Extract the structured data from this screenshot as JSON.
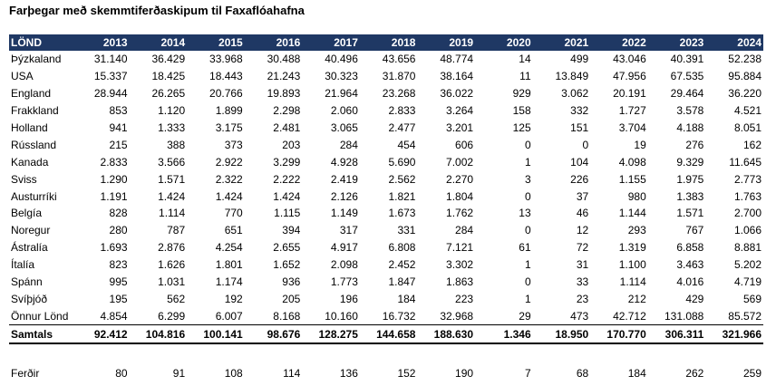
{
  "title": "Farþegar með skemmtiferðaskipum til Faxaflóahafna",
  "table": {
    "columns": [
      "LÖND",
      "2013",
      "2014",
      "2015",
      "2016",
      "2017",
      "2018",
      "2019",
      "2020",
      "2021",
      "2022",
      "2023",
      "2024"
    ],
    "rows": [
      [
        "Þýzkaland",
        "31.140",
        "36.429",
        "33.968",
        "30.488",
        "40.496",
        "43.656",
        "48.774",
        "14",
        "499",
        "43.046",
        "40.391",
        "52.238"
      ],
      [
        "USA",
        "15.337",
        "18.425",
        "18.443",
        "21.243",
        "30.323",
        "31.870",
        "38.164",
        "11",
        "13.849",
        "47.956",
        "67.535",
        "95.884"
      ],
      [
        "England",
        "28.944",
        "26.265",
        "20.766",
        "19.893",
        "21.964",
        "23.268",
        "36.022",
        "929",
        "3.062",
        "20.191",
        "29.464",
        "36.220"
      ],
      [
        "Frakkland",
        "853",
        "1.120",
        "1.899",
        "2.298",
        "2.060",
        "2.833",
        "3.264",
        "158",
        "332",
        "1.727",
        "3.578",
        "4.521"
      ],
      [
        "Holland",
        "941",
        "1.333",
        "3.175",
        "2.481",
        "3.065",
        "2.477",
        "3.201",
        "125",
        "151",
        "3.704",
        "4.188",
        "8.051"
      ],
      [
        "Rússland",
        "215",
        "388",
        "373",
        "203",
        "284",
        "454",
        "606",
        "0",
        "0",
        "19",
        "276",
        "162"
      ],
      [
        "Kanada",
        "2.833",
        "3.566",
        "2.922",
        "3.299",
        "4.928",
        "5.690",
        "7.002",
        "1",
        "104",
        "4.098",
        "9.329",
        "11.645"
      ],
      [
        "Sviss",
        "1.290",
        "1.571",
        "2.322",
        "2.222",
        "2.419",
        "2.562",
        "2.270",
        "3",
        "226",
        "1.155",
        "1.975",
        "2.773"
      ],
      [
        "Austurríki",
        "1.191",
        "1.424",
        "1.424",
        "1.424",
        "2.126",
        "1.821",
        "1.804",
        "0",
        "37",
        "980",
        "1.383",
        "1.763"
      ],
      [
        "Belgía",
        "828",
        "1.114",
        "770",
        "1.115",
        "1.149",
        "1.673",
        "1.762",
        "13",
        "46",
        "1.144",
        "1.571",
        "2.700"
      ],
      [
        "Noregur",
        "280",
        "787",
        "651",
        "394",
        "317",
        "331",
        "284",
        "0",
        "12",
        "293",
        "767",
        "1.066"
      ],
      [
        "Ástralía",
        "1.693",
        "2.876",
        "4.254",
        "2.655",
        "4.917",
        "6.808",
        "7.121",
        "61",
        "72",
        "1.319",
        "6.858",
        "8.881"
      ],
      [
        "Ítalía",
        "823",
        "1.626",
        "1.801",
        "1.652",
        "2.098",
        "2.452",
        "3.302",
        "1",
        "31",
        "1.100",
        "3.463",
        "5.202"
      ],
      [
        "Spánn",
        "995",
        "1.031",
        "1.174",
        "936",
        "1.773",
        "1.847",
        "1.863",
        "0",
        "33",
        "1.114",
        "4.016",
        "4.719"
      ],
      [
        "Svíþjóð",
        "195",
        "562",
        "192",
        "205",
        "196",
        "184",
        "223",
        "1",
        "23",
        "212",
        "429",
        "569"
      ],
      [
        "Önnur Lönd",
        "4.854",
        "6.299",
        "6.007",
        "8.168",
        "10.160",
        "16.732",
        "32.968",
        "29",
        "473",
        "42.712",
        "131.088",
        "85.572"
      ]
    ],
    "total": [
      "Samtals",
      "92.412",
      "104.816",
      "100.141",
      "98.676",
      "128.275",
      "144.658",
      "188.630",
      "1.346",
      "18.950",
      "170.770",
      "306.311",
      "321.966"
    ],
    "trips": [
      "Ferðir",
      "80",
      "91",
      "108",
      "114",
      "136",
      "152",
      "190",
      "7",
      "68",
      "184",
      "262",
      "259"
    ]
  },
  "colors": {
    "header_bg": "#1f3864",
    "header_text": "#ffffff"
  }
}
